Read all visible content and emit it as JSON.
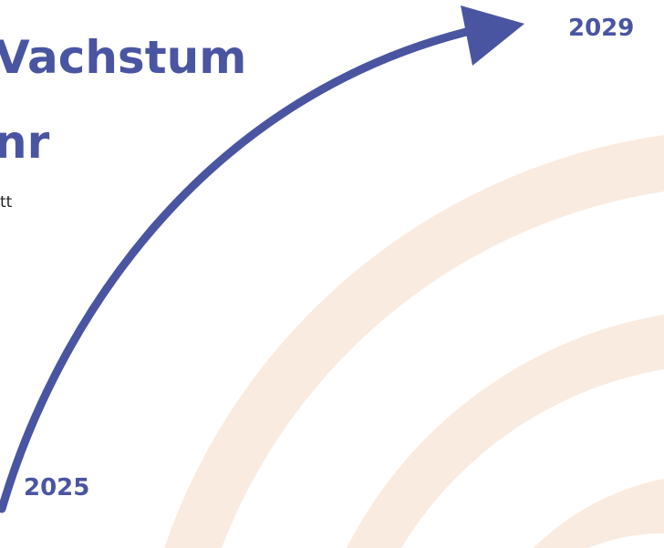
{
  "colors": {
    "accent": "#4a55a2",
    "arcs": "#faebe0",
    "background": "#ffffff",
    "body_text": "#1f1f1f"
  },
  "title": {
    "line1": "Vachstum",
    "line2": "nr"
  },
  "subtitle": "tt",
  "years": {
    "start": "2025",
    "end": "2029"
  },
  "icons": {
    "arrow": "curved-growth-arrow-icon"
  }
}
